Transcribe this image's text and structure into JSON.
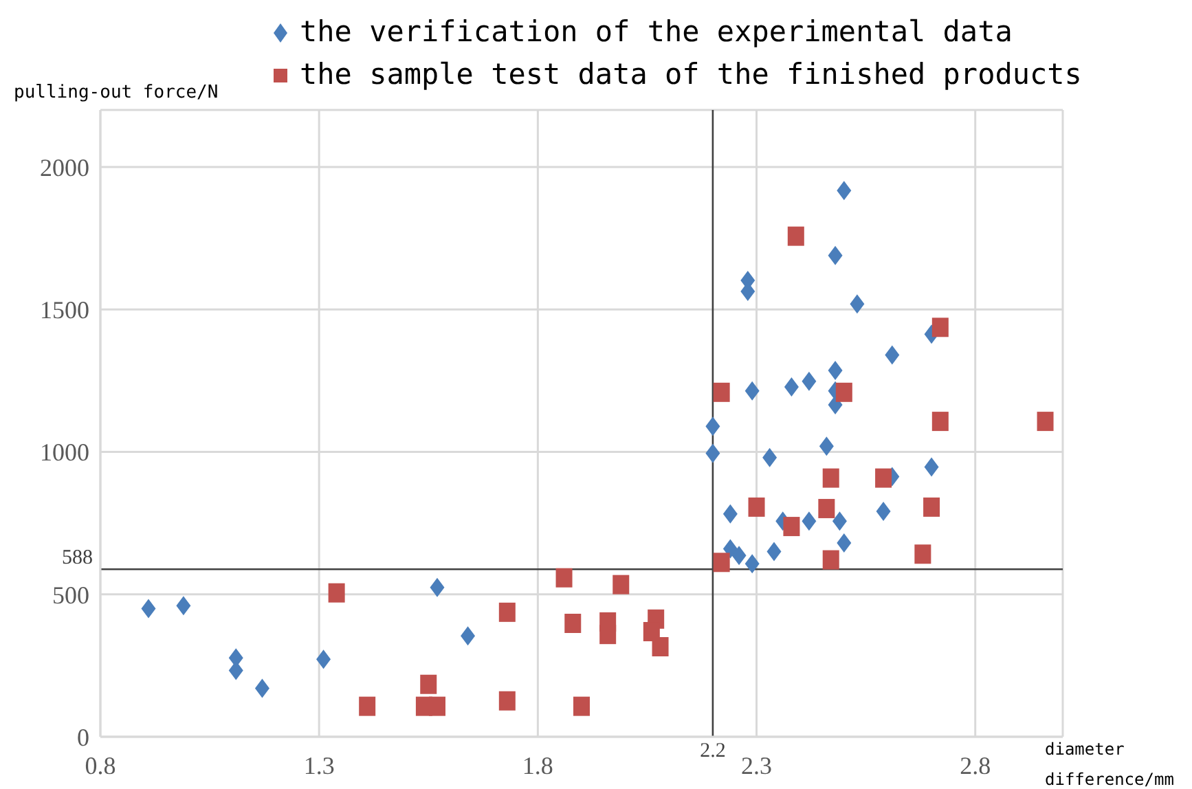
{
  "chart_data": {
    "type": "scatter",
    "xlabel": "diameter difference/mm",
    "ylabel": "pulling-out force/N",
    "xlim": [
      0.8,
      3.0
    ],
    "xticks": [
      0.8,
      1.3,
      1.8,
      2.3,
      2.8
    ],
    "ylim": [
      0,
      2200
    ],
    "yticks": [
      0,
      500,
      1000,
      1500,
      2000
    ],
    "grid": true,
    "legend": "top",
    "ref_lines": [
      {
        "axis": "x",
        "value": 2.2,
        "label": "2.2",
        "color": "#404040"
      },
      {
        "axis": "y",
        "value": 588,
        "label": "588",
        "color": "#404040"
      }
    ],
    "series": [
      {
        "name": "the verification of the experimental data",
        "color": "#4a7ebb",
        "marker": "diamond",
        "x": [
          0.91,
          0.99,
          1.11,
          1.11,
          1.17,
          1.31,
          1.57,
          1.64,
          2.2,
          2.2,
          2.33,
          2.46,
          2.24,
          2.7,
          2.59,
          2.61,
          2.36,
          2.42,
          2.49,
          2.5,
          2.24,
          2.26,
          2.29,
          2.34,
          2.5,
          2.28,
          2.28,
          2.48,
          2.53,
          2.7,
          2.61,
          2.48,
          2.42,
          2.38,
          2.29,
          2.48,
          2.48
        ],
        "values": [
          450,
          460,
          277,
          233,
          170,
          272,
          524,
          354,
          1090,
          995,
          980,
          1020,
          782,
          947,
          791,
          913,
          757,
          757,
          757,
          680,
          660,
          636,
          607,
          650,
          1917,
          1602,
          1563,
          1689,
          1519,
          1413,
          1340,
          1286,
          1248,
          1228,
          1214,
          1214,
          1165
        ]
      },
      {
        "name": "the sample test data of the finished products",
        "color": "#c0504d",
        "marker": "square",
        "x": [
          1.34,
          1.41,
          1.54,
          1.57,
          1.55,
          1.73,
          1.73,
          1.86,
          1.9,
          1.88,
          1.96,
          1.96,
          1.99,
          2.07,
          2.06,
          2.08,
          2.22,
          2.3,
          2.38,
          2.47,
          2.46,
          2.47,
          2.59,
          2.7,
          2.68,
          2.72,
          2.96,
          2.39,
          2.72,
          2.22,
          2.5
        ],
        "values": [
          505,
          107,
          107,
          107,
          184,
          437,
          126,
          558,
          107,
          398,
          403,
          359,
          534,
          413,
          369,
          316,
          612,
          806,
          738,
          908,
          801,
          621,
          908,
          806,
          641,
          1107,
          1107,
          1757,
          1437,
          1209,
          1209
        ]
      }
    ]
  }
}
